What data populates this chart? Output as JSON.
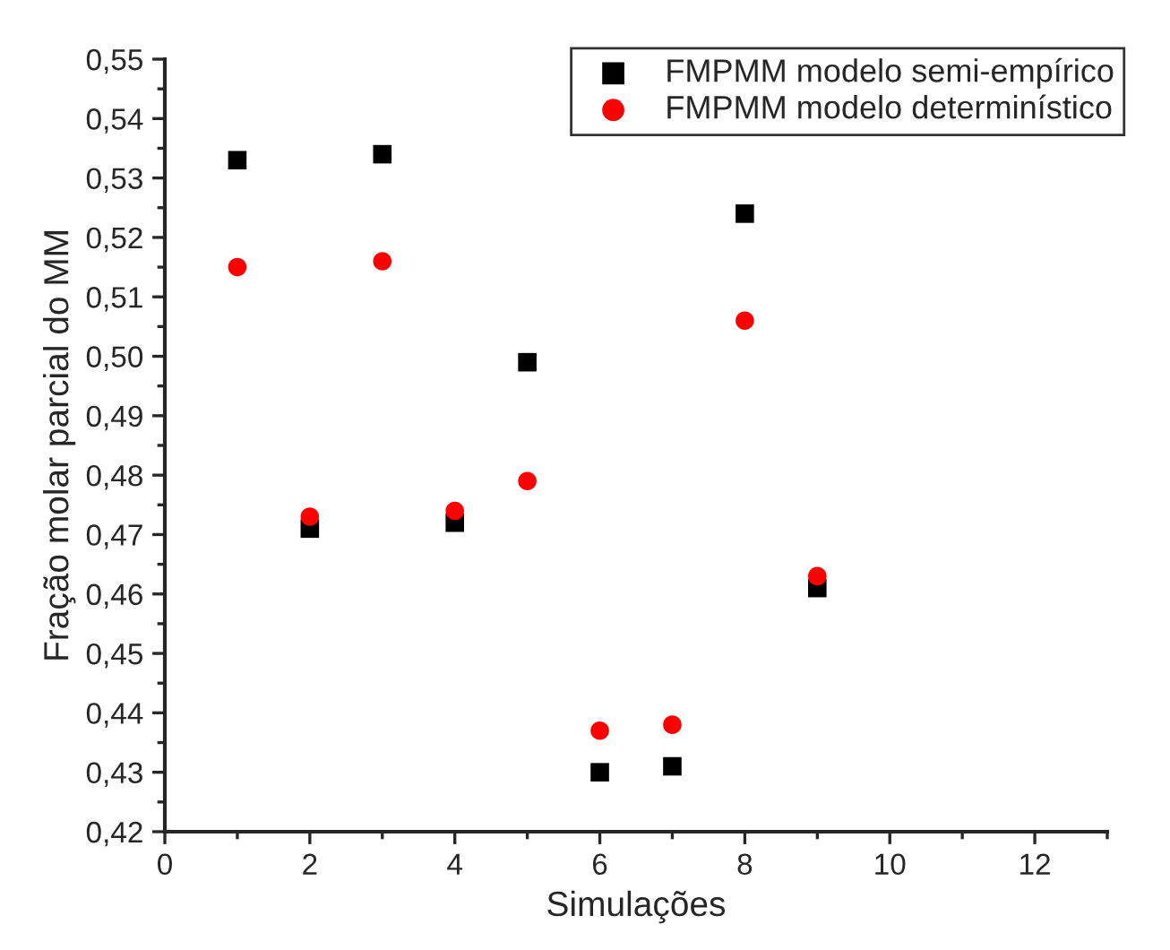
{
  "chart_data": {
    "type": "scatter",
    "xlabel": "Simulações",
    "ylabel": "Fração molar parcial do MM",
    "xlim": [
      0,
      13
    ],
    "xticks": [
      0,
      2,
      4,
      6,
      8,
      10,
      12
    ],
    "ylim": [
      0.42,
      0.55
    ],
    "yticks": [
      {
        "value": 0.42,
        "label": "0,42"
      },
      {
        "value": 0.43,
        "label": "0,43"
      },
      {
        "value": 0.44,
        "label": "0,44"
      },
      {
        "value": 0.45,
        "label": "0,45"
      },
      {
        "value": 0.46,
        "label": "0,46"
      },
      {
        "value": 0.47,
        "label": "0,47"
      },
      {
        "value": 0.48,
        "label": "0,48"
      },
      {
        "value": 0.49,
        "label": "0,49"
      },
      {
        "value": 0.5,
        "label": "0,50"
      },
      {
        "value": 0.51,
        "label": "0,51"
      },
      {
        "value": 0.52,
        "label": "0,52"
      },
      {
        "value": 0.53,
        "label": "0,53"
      },
      {
        "value": 0.54,
        "label": "0,54"
      },
      {
        "value": 0.55,
        "label": "0,55"
      }
    ],
    "x": [
      1,
      2,
      3,
      4,
      5,
      6,
      7,
      8,
      9
    ],
    "series": [
      {
        "name": "FMPMM modelo semi-empírico",
        "color": "#000000",
        "marker": "square",
        "values": [
          0.533,
          0.471,
          0.534,
          0.472,
          0.499,
          0.43,
          0.431,
          0.524,
          0.461
        ]
      },
      {
        "name": "FMPMM modelo determinístico",
        "color": "#ff0000",
        "marker": "circle",
        "values": [
          0.515,
          0.473,
          0.516,
          0.474,
          0.479,
          0.437,
          0.438,
          0.506,
          0.463
        ]
      }
    ],
    "grid": false,
    "legend": "top right"
  }
}
